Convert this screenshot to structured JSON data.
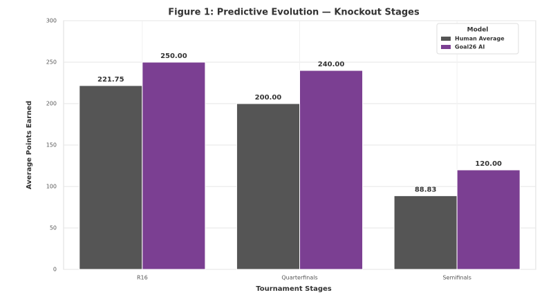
{
  "chart_data": {
    "type": "bar",
    "title": "Figure 1: Predictive Evolution — Knockout Stages",
    "x_label": "Tournament Stages",
    "y_label": "Average Points Earned",
    "categories": [
      "R16",
      "Quarterfinals",
      "Semifinals"
    ],
    "legend_title": "Model",
    "legend_position": "upper right",
    "grid": true,
    "ylim": [
      0,
      300
    ],
    "yticks": [
      0,
      50,
      100,
      150,
      200,
      250,
      300
    ],
    "series": [
      {
        "name": "Human Average",
        "color": "#555555",
        "values": [
          221.75,
          200,
          88.83
        ],
        "value_labels": [
          "221.75",
          "200.00",
          "88.83"
        ]
      },
      {
        "name": "Goal26 AI",
        "color": "#7b3f92",
        "values": [
          250,
          240,
          120
        ],
        "value_labels": [
          "250.00",
          "240.00",
          "120.00"
        ]
      }
    ]
  }
}
